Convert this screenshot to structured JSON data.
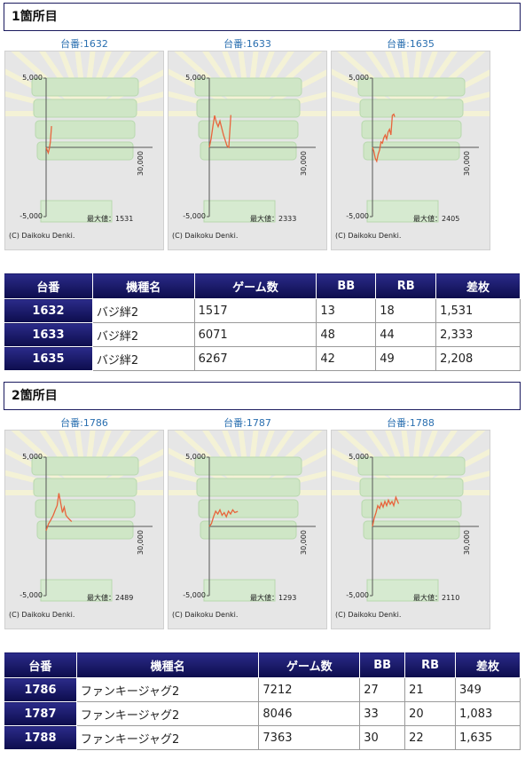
{
  "sections": [
    {
      "title": "1箇所目",
      "charts": [
        {
          "caption": "台番:1632",
          "y_top": "5,000",
          "y_bottom": "-5,000",
          "x_end": "30,000",
          "max_label": "最大値：1531",
          "copyright": "(C) Daikoku Denki.",
          "series": [
            [
              0,
              0
            ],
            [
              300,
              -200
            ],
            [
              600,
              -400
            ],
            [
              900,
              -100
            ],
            [
              1200,
              400
            ],
            [
              1517,
              1531
            ]
          ]
        },
        {
          "caption": "台番:1633",
          "y_top": "5,000",
          "y_bottom": "-5,000",
          "x_end": "30,000",
          "max_label": "最大値：2333",
          "copyright": "(C) Daikoku Denki.",
          "series": [
            [
              0,
              0
            ],
            [
              500,
              600
            ],
            [
              1000,
              1500
            ],
            [
              1500,
              2300
            ],
            [
              2000,
              1800
            ],
            [
              2500,
              1500
            ],
            [
              3000,
              1900
            ],
            [
              3500,
              1400
            ],
            [
              4000,
              900
            ],
            [
              4500,
              500
            ],
            [
              5000,
              100
            ],
            [
              5500,
              0
            ],
            [
              6071,
              2333
            ]
          ]
        },
        {
          "caption": "台番:1635",
          "y_top": "5,000",
          "y_bottom": "-5,000",
          "x_end": "30,000",
          "max_label": "最大値：2405",
          "copyright": "(C) Daikoku Denki.",
          "series": [
            [
              0,
              0
            ],
            [
              400,
              -300
            ],
            [
              800,
              -800
            ],
            [
              1200,
              -1000
            ],
            [
              1600,
              -500
            ],
            [
              2000,
              -200
            ],
            [
              2400,
              400
            ],
            [
              2800,
              300
            ],
            [
              3200,
              700
            ],
            [
              3600,
              900
            ],
            [
              4000,
              600
            ],
            [
              4400,
              1100
            ],
            [
              4800,
              1300
            ],
            [
              5200,
              900
            ],
            [
              5600,
              2300
            ],
            [
              6000,
              2400
            ],
            [
              6267,
              2208
            ]
          ]
        }
      ],
      "table": {
        "headers": [
          "台番",
          "機種名",
          "ゲーム数",
          "BB",
          "RB",
          "差枚"
        ],
        "rows": [
          [
            "1632",
            "バジ絆2",
            "1517",
            "13",
            "18",
            "1,531"
          ],
          [
            "1633",
            "バジ絆2",
            "6071",
            "48",
            "44",
            "2,333"
          ],
          [
            "1635",
            "バジ絆2",
            "6267",
            "42",
            "49",
            "2,208"
          ]
        ]
      }
    },
    {
      "title": "2箇所目",
      "charts": [
        {
          "caption": "台番:1786",
          "y_top": "5,000",
          "y_bottom": "-5,000",
          "x_end": "30,000",
          "max_label": "最大値：2489",
          "copyright": "(C) Daikoku Denki.",
          "series": [
            [
              0,
              -300
            ],
            [
              700,
              200
            ],
            [
              1400,
              500
            ],
            [
              2000,
              800
            ],
            [
              2600,
              1200
            ],
            [
              3100,
              1500
            ],
            [
              3600,
              2400
            ],
            [
              4100,
              1700
            ],
            [
              4600,
              1000
            ],
            [
              5100,
              1400
            ],
            [
              5600,
              800
            ],
            [
              6200,
              600
            ],
            [
              7212,
              349
            ]
          ]
        },
        {
          "caption": "台番:1787",
          "y_top": "5,000",
          "y_bottom": "-5,000",
          "x_end": "30,000",
          "max_label": "最大値：1293",
          "copyright": "(C) Daikoku Denki.",
          "series": [
            [
              0,
              0
            ],
            [
              600,
              200
            ],
            [
              1200,
              700
            ],
            [
              1800,
              1100
            ],
            [
              2400,
              900
            ],
            [
              3000,
              1200
            ],
            [
              3600,
              800
            ],
            [
              4200,
              1000
            ],
            [
              4800,
              700
            ],
            [
              5400,
              1100
            ],
            [
              6000,
              900
            ],
            [
              6600,
              1200
            ],
            [
              7200,
              1000
            ],
            [
              8046,
              1083
            ]
          ]
        },
        {
          "caption": "台番:1788",
          "y_top": "5,000",
          "y_bottom": "-5,000",
          "x_end": "30,000",
          "max_label": "最大値：2110",
          "copyright": "(C) Daikoku Denki.",
          "series": [
            [
              0,
              0
            ],
            [
              500,
              600
            ],
            [
              1000,
              1000
            ],
            [
              1500,
              1500
            ],
            [
              2000,
              1300
            ],
            [
              2500,
              1700
            ],
            [
              3000,
              1400
            ],
            [
              3500,
              1800
            ],
            [
              4000,
              1500
            ],
            [
              4500,
              1900
            ],
            [
              5000,
              1600
            ],
            [
              5500,
              1800
            ],
            [
              6000,
              1500
            ],
            [
              6600,
              2110
            ],
            [
              7363,
              1635
            ]
          ]
        }
      ],
      "table": {
        "headers": [
          "台番",
          "機種名",
          "ゲーム数",
          "BB",
          "RB",
          "差枚"
        ],
        "rows": [
          [
            "1786",
            "ファンキージャグ2",
            "7212",
            "27",
            "21",
            "349"
          ],
          [
            "1787",
            "ファンキージャグ2",
            "8046",
            "33",
            "20",
            "1,083"
          ],
          [
            "1788",
            "ファンキージャグ2",
            "7363",
            "30",
            "22",
            "1,635"
          ]
        ]
      }
    }
  ],
  "chart_data": [
    {
      "type": "line",
      "title": "台番:1632",
      "xlabel": "",
      "ylabel": "",
      "xlim": [
        0,
        30000
      ],
      "ylim": [
        -5000,
        5000
      ],
      "series": [
        {
          "values": [
            [
              0,
              0
            ],
            [
              300,
              -200
            ],
            [
              600,
              -400
            ],
            [
              900,
              -100
            ],
            [
              1200,
              400
            ],
            [
              1517,
              1531
            ]
          ]
        }
      ]
    },
    {
      "type": "line",
      "title": "台番:1633",
      "xlabel": "",
      "ylabel": "",
      "xlim": [
        0,
        30000
      ],
      "ylim": [
        -5000,
        5000
      ],
      "series": [
        {
          "values": [
            [
              0,
              0
            ],
            [
              500,
              600
            ],
            [
              1000,
              1500
            ],
            [
              1500,
              2300
            ],
            [
              2000,
              1800
            ],
            [
              2500,
              1500
            ],
            [
              3000,
              1900
            ],
            [
              3500,
              1400
            ],
            [
              4000,
              900
            ],
            [
              4500,
              500
            ],
            [
              5000,
              100
            ],
            [
              5500,
              0
            ],
            [
              6071,
              2333
            ]
          ]
        }
      ]
    },
    {
      "type": "line",
      "title": "台番:1635",
      "xlabel": "",
      "ylabel": "",
      "xlim": [
        0,
        30000
      ],
      "ylim": [
        -5000,
        5000
      ],
      "series": [
        {
          "values": [
            [
              0,
              0
            ],
            [
              400,
              -300
            ],
            [
              800,
              -800
            ],
            [
              1200,
              -1000
            ],
            [
              1600,
              -500
            ],
            [
              2000,
              -200
            ],
            [
              2400,
              400
            ],
            [
              2800,
              300
            ],
            [
              3200,
              700
            ],
            [
              3600,
              900
            ],
            [
              4000,
              600
            ],
            [
              4400,
              1100
            ],
            [
              4800,
              1300
            ],
            [
              5200,
              900
            ],
            [
              5600,
              2300
            ],
            [
              6000,
              2400
            ],
            [
              6267,
              2208
            ]
          ]
        }
      ]
    },
    {
      "type": "line",
      "title": "台番:1786",
      "xlabel": "",
      "ylabel": "",
      "xlim": [
        0,
        30000
      ],
      "ylim": [
        -5000,
        5000
      ],
      "series": [
        {
          "values": [
            [
              0,
              -300
            ],
            [
              700,
              200
            ],
            [
              1400,
              500
            ],
            [
              2000,
              800
            ],
            [
              2600,
              1200
            ],
            [
              3100,
              1500
            ],
            [
              3600,
              2400
            ],
            [
              4100,
              1700
            ],
            [
              4600,
              1000
            ],
            [
              5100,
              1400
            ],
            [
              5600,
              800
            ],
            [
              6200,
              600
            ],
            [
              7212,
              349
            ]
          ]
        }
      ]
    },
    {
      "type": "line",
      "title": "台番:1787",
      "xlabel": "",
      "ylabel": "",
      "xlim": [
        0,
        30000
      ],
      "ylim": [
        -5000,
        5000
      ],
      "series": [
        {
          "values": [
            [
              0,
              0
            ],
            [
              600,
              200
            ],
            [
              1200,
              700
            ],
            [
              1800,
              1100
            ],
            [
              2400,
              900
            ],
            [
              3000,
              1200
            ],
            [
              3600,
              800
            ],
            [
              4200,
              1000
            ],
            [
              4800,
              700
            ],
            [
              5400,
              1100
            ],
            [
              6000,
              900
            ],
            [
              6600,
              1200
            ],
            [
              7200,
              1000
            ],
            [
              8046,
              1083
            ]
          ]
        }
      ]
    },
    {
      "type": "line",
      "title": "台番:1788",
      "xlabel": "",
      "ylabel": "",
      "xlim": [
        0,
        30000
      ],
      "ylim": [
        -5000,
        5000
      ],
      "series": [
        {
          "values": [
            [
              0,
              0
            ],
            [
              500,
              600
            ],
            [
              1000,
              1000
            ],
            [
              1500,
              1500
            ],
            [
              2000,
              1300
            ],
            [
              2500,
              1700
            ],
            [
              3000,
              1400
            ],
            [
              3500,
              1800
            ],
            [
              4000,
              1500
            ],
            [
              4500,
              1900
            ],
            [
              5000,
              1600
            ],
            [
              5500,
              1800
            ],
            [
              6000,
              1500
            ],
            [
              6600,
              2110
            ],
            [
              7363,
              1635
            ]
          ]
        }
      ]
    }
  ],
  "colors": {
    "series_line": "#e8643c",
    "header_bg": "#1a1a6e",
    "caption": "#2a6fb0"
  }
}
